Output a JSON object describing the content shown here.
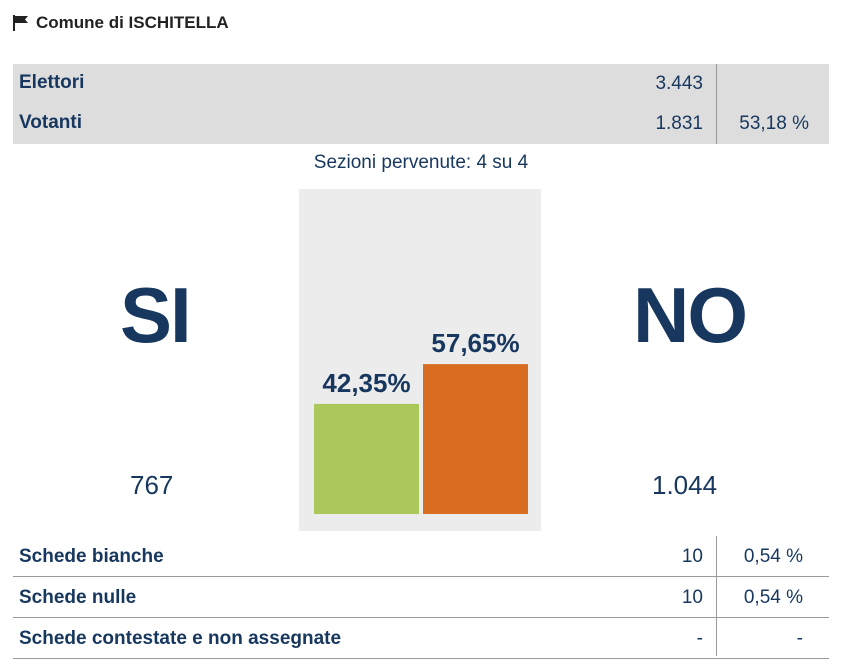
{
  "header": {
    "title": "Comune di ISCHITELLA",
    "icon": "flag-icon"
  },
  "summary": {
    "rows": [
      {
        "label": "Elettori",
        "value": "3.443",
        "percent": ""
      },
      {
        "label": "Votanti",
        "value": "1.831",
        "percent": "53,18 %"
      }
    ]
  },
  "sections": "Sezioni pervenute: 4 su 4",
  "results": {
    "si": {
      "label": "SI",
      "votes": "767",
      "percent_label": "42,35%"
    },
    "no": {
      "label": "NO",
      "votes": "1.044",
      "percent_label": "57,65%"
    }
  },
  "chart_data": {
    "type": "bar",
    "categories": [
      "SI",
      "NO"
    ],
    "values": [
      42.35,
      57.65
    ],
    "colors": [
      "#abc95a",
      "#d86d22"
    ],
    "ylim": [
      0,
      100
    ]
  },
  "details": {
    "rows": [
      {
        "label": "Schede bianche",
        "value": "10",
        "percent": "0,54 %"
      },
      {
        "label": "Schede nulle",
        "value": "10",
        "percent": "0,54 %"
      },
      {
        "label": "Schede contestate e non assegnate",
        "value": "-",
        "percent": "-"
      }
    ]
  }
}
